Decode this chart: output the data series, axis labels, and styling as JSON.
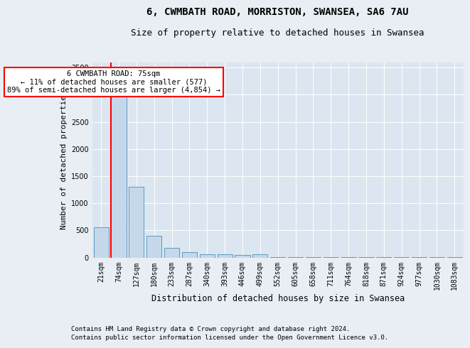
{
  "title": "6, CWMBATH ROAD, MORRISTON, SWANSEA, SA6 7AU",
  "subtitle": "Size of property relative to detached houses in Swansea",
  "xlabel": "Distribution of detached houses by size in Swansea",
  "ylabel": "Number of detached properties",
  "footnote1": "Contains HM Land Registry data © Crown copyright and database right 2024.",
  "footnote2": "Contains public sector information licensed under the Open Government Licence v3.0.",
  "categories": [
    "21sqm",
    "74sqm",
    "127sqm",
    "180sqm",
    "233sqm",
    "287sqm",
    "340sqm",
    "393sqm",
    "446sqm",
    "499sqm",
    "552sqm",
    "605sqm",
    "658sqm",
    "711sqm",
    "764sqm",
    "818sqm",
    "871sqm",
    "924sqm",
    "977sqm",
    "1030sqm",
    "1083sqm"
  ],
  "values": [
    550,
    3250,
    1300,
    400,
    175,
    100,
    65,
    55,
    50,
    55,
    10,
    5,
    3,
    2,
    2,
    1,
    1,
    1,
    1,
    1,
    1
  ],
  "bar_color": "#c5d8ea",
  "bar_edge_color": "#5a9abf",
  "vline_color": "red",
  "annotation_text": "6 CWMBATH ROAD: 75sqm\n← 11% of detached houses are smaller (577)\n89% of semi-detached houses are larger (4,854) →",
  "annotation_box_color": "white",
  "annotation_box_edge_color": "red",
  "ylim": [
    0,
    3600
  ],
  "yticks": [
    0,
    500,
    1000,
    1500,
    2000,
    2500,
    3000,
    3500
  ],
  "background_color": "#e8eef4",
  "plot_background_color": "#dce6f0",
  "title_fontsize": 10,
  "subtitle_fontsize": 9,
  "tick_fontsize": 7,
  "ylabel_fontsize": 8,
  "xlabel_fontsize": 8.5,
  "annotation_fontsize": 7.5,
  "footnote_fontsize": 6.5
}
